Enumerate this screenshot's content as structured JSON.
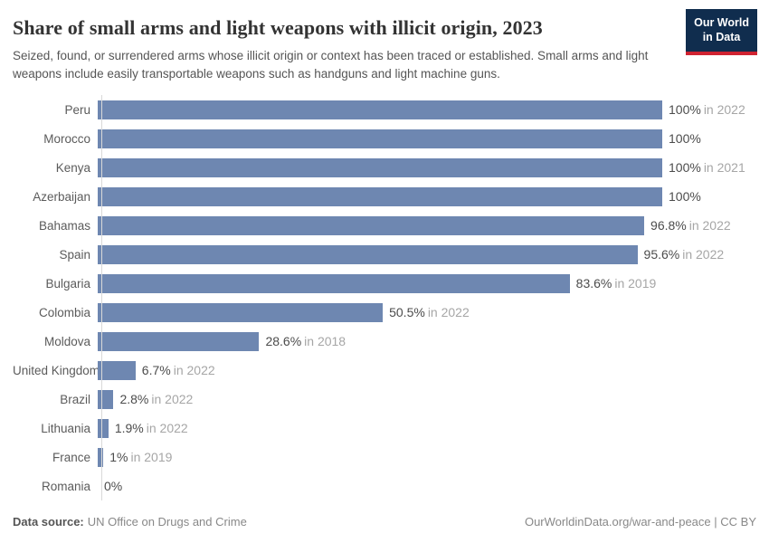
{
  "header": {
    "title": "Share of small arms and light weapons with illicit origin, 2023",
    "subtitle": "Seized, found, or surrendered arms whose illicit origin or context has been traced or established. Small arms and light weapons include easily transportable weapons such as handguns and light machine guns.",
    "logo_line1": "Our World",
    "logo_line2": "in Data"
  },
  "chart_data": {
    "type": "bar",
    "orientation": "horizontal",
    "categories": [
      "Peru",
      "Morocco",
      "Kenya",
      "Azerbaijan",
      "Bahamas",
      "Spain",
      "Bulgaria",
      "Colombia",
      "Moldova",
      "United Kingdom",
      "Brazil",
      "Lithuania",
      "France",
      "Romania"
    ],
    "values": [
      100,
      100,
      100,
      100,
      96.8,
      95.6,
      83.6,
      50.5,
      28.6,
      6.7,
      2.8,
      1.9,
      1,
      0
    ],
    "value_labels": [
      "100%",
      "100%",
      "100%",
      "100%",
      "96.8%",
      "95.6%",
      "83.6%",
      "50.5%",
      "28.6%",
      "6.7%",
      "2.8%",
      "1.9%",
      "1%",
      "0%"
    ],
    "year_notes": [
      "in 2022",
      "",
      "in 2021",
      "",
      "in 2022",
      "in 2022",
      "in 2019",
      "in 2022",
      "in 2018",
      "in 2022",
      "in 2022",
      "in 2022",
      "in 2019",
      ""
    ],
    "xlim": [
      0,
      100
    ],
    "grid": false,
    "legend": "none",
    "bar_color": "#6e87b1"
  },
  "colors": {
    "bar": "#6e87b1",
    "axis_line": "#d9d9d9",
    "logo_navy": "#102d4e",
    "logo_red": "#cf2331",
    "title_text": "#333333",
    "subtitle_text": "#555555",
    "value_text": "#4c4c4c",
    "year_text": "#a6a6a6"
  },
  "footer": {
    "source_label": "Data source:",
    "source_value": "UN Office on Drugs and Crime",
    "link": "OurWorldinData.org/war-and-peace",
    "separator": " | ",
    "license": "CC BY"
  }
}
